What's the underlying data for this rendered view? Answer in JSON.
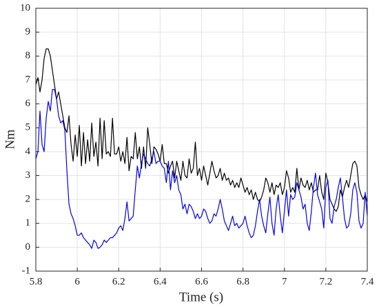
{
  "chart_data": {
    "type": "line",
    "xlabel": "Time (s)",
    "ylabel": "Nm",
    "x": [
      5.8,
      5.81,
      5.82,
      5.83,
      5.84,
      5.85,
      5.86,
      5.87,
      5.88,
      5.89,
      5.9,
      5.91,
      5.92,
      5.93,
      5.94,
      5.95,
      5.96,
      5.97,
      5.98,
      5.99,
      6.0,
      6.01,
      6.02,
      6.03,
      6.04,
      6.05,
      6.06,
      6.07,
      6.08,
      6.09,
      6.1,
      6.11,
      6.12,
      6.13,
      6.14,
      6.15,
      6.16,
      6.17,
      6.18,
      6.19,
      6.2,
      6.21,
      6.22,
      6.23,
      6.24,
      6.25,
      6.26,
      6.27,
      6.28,
      6.29,
      6.3,
      6.31,
      6.32,
      6.33,
      6.34,
      6.35,
      6.36,
      6.37,
      6.38,
      6.39,
      6.4,
      6.41,
      6.42,
      6.43,
      6.44,
      6.45,
      6.46,
      6.47,
      6.48,
      6.49,
      6.5,
      6.51,
      6.52,
      6.53,
      6.54,
      6.55,
      6.56,
      6.57,
      6.58,
      6.59,
      6.6,
      6.61,
      6.62,
      6.63,
      6.64,
      6.65,
      6.66,
      6.67,
      6.68,
      6.69,
      6.7,
      6.71,
      6.72,
      6.73,
      6.74,
      6.75,
      6.76,
      6.77,
      6.78,
      6.79,
      6.8,
      6.81,
      6.82,
      6.83,
      6.84,
      6.85,
      6.86,
      6.87,
      6.88,
      6.89,
      6.9,
      6.91,
      6.92,
      6.93,
      6.94,
      6.95,
      6.96,
      6.97,
      6.98,
      6.99,
      7.0,
      7.01,
      7.02,
      7.03,
      7.04,
      7.05,
      7.06,
      7.07,
      7.08,
      7.09,
      7.1,
      7.11,
      7.12,
      7.13,
      7.14,
      7.15,
      7.16,
      7.17,
      7.18,
      7.19,
      7.2,
      7.21,
      7.22,
      7.23,
      7.24,
      7.25,
      7.26,
      7.27,
      7.28,
      7.29,
      7.3,
      7.31,
      7.32,
      7.33,
      7.34,
      7.35,
      7.36,
      7.37,
      7.38,
      7.39,
      7.4
    ],
    "series": [
      {
        "color": "#000000",
        "values": [
          6.8,
          7.1,
          6.5,
          7.0,
          7.9,
          8.3,
          8.3,
          8.0,
          7.4,
          6.8,
          6.2,
          6.5,
          6.0,
          5.5,
          5.0,
          4.8,
          5.5,
          4.3,
          3.6,
          4.7,
          3.8,
          5.1,
          3.4,
          4.8,
          3.5,
          4.5,
          3.6,
          5.2,
          3.8,
          4.4,
          3.4,
          5.4,
          3.7,
          5.3,
          3.9,
          4.0,
          3.8,
          5.4,
          3.9,
          3.9,
          4.2,
          3.6,
          4.0,
          3.5,
          4.6,
          3.2,
          3.8,
          3.7,
          4.8,
          3.7,
          4.2,
          3.3,
          4.2,
          3.3,
          5.0,
          4.3,
          3.5,
          4.2,
          4.1,
          3.9,
          3.6,
          4.3,
          3.5,
          3.5,
          3.1,
          3.4,
          3.6,
          2.9,
          3.6,
          3.2,
          2.8,
          3.6,
          3.0,
          2.9,
          3.7,
          3.1,
          3.3,
          4.4,
          3.0,
          3.3,
          2.8,
          3.4,
          3.0,
          2.6,
          3.1,
          3.6,
          3.2,
          2.9,
          3.0,
          3.3,
          2.8,
          3.1,
          2.8,
          2.9,
          2.6,
          2.8,
          2.5,
          2.7,
          2.5,
          2.9,
          2.6,
          2.3,
          2.5,
          2.2,
          2.4,
          2.0,
          2.3,
          2.0,
          1.9,
          2.1,
          2.4,
          2.9,
          2.7,
          2.3,
          2.7,
          2.2,
          2.6,
          2.5,
          2.7,
          2.2,
          2.5,
          3.2,
          2.9,
          2.3,
          2.5,
          2.3,
          3.3,
          2.4,
          2.9,
          2.6,
          2.5,
          2.8,
          2.4,
          2.7,
          2.3,
          2.4,
          2.4,
          3.0,
          2.3,
          2.0,
          3.1,
          2.7,
          2.0,
          1.8,
          1.6,
          1.5,
          1.7,
          2.4,
          2.1,
          2.5,
          2.8,
          2.5,
          3.0,
          3.5,
          3.6,
          3.4,
          2.5,
          2.2,
          2.0,
          2.2,
          1.9
        ]
      },
      {
        "color": "#0000ee",
        "values": [
          3.7,
          4.0,
          5.7,
          4.3,
          4.0,
          5.4,
          6.1,
          5.7,
          6.6,
          6.6,
          6.2,
          5.5,
          5.2,
          5.3,
          4.9,
          3.2,
          1.8,
          1.4,
          1.2,
          0.9,
          0.5,
          0.5,
          0.6,
          0.4,
          0.3,
          0.2,
          0.1,
          -0.05,
          0.3,
          0.2,
          -0.05,
          0.0,
          0.1,
          0.3,
          0.2,
          0.3,
          0.4,
          0.4,
          0.5,
          0.6,
          0.8,
          0.9,
          0.7,
          1.2,
          1.9,
          1.1,
          1.2,
          1.3,
          2.4,
          3.4,
          2.9,
          3.5,
          3.9,
          3.7,
          3.5,
          3.4,
          3.7,
          4.0,
          3.5,
          3.6,
          3.6,
          3.4,
          3.3,
          2.7,
          3.6,
          2.4,
          3.2,
          2.7,
          3.0,
          2.4,
          2.2,
          1.6,
          1.8,
          1.4,
          1.8,
          1.7,
          1.5,
          1.2,
          1.4,
          1.2,
          1.3,
          1.6,
          1.5,
          1.2,
          1.0,
          1.1,
          1.4,
          1.3,
          1.6,
          2.0,
          1.6,
          1.1,
          0.9,
          0.7,
          1.0,
          1.3,
          0.9,
          1.0,
          0.8,
          0.9,
          1.0,
          1.3,
          0.9,
          0.6,
          0.4,
          0.5,
          0.9,
          1.5,
          2.0,
          1.3,
          0.9,
          0.6,
          1.4,
          2.1,
          1.0,
          0.5,
          1.6,
          2.2,
          1.3,
          0.6,
          1.5,
          2.4,
          1.3,
          2.2,
          2.0,
          2.1,
          2.7,
          2.4,
          2.1,
          1.6,
          1.8,
          1.0,
          0.7,
          1.5,
          2.5,
          3.1,
          2.2,
          1.9,
          1.6,
          0.8,
          2.5,
          2.8,
          1.2,
          1.0,
          1.7,
          2.0,
          2.5,
          2.9,
          2.1,
          1.2,
          0.8,
          0.9,
          1.4,
          2.4,
          2.7,
          2.3,
          1.1,
          0.8,
          1.0,
          2.3,
          1.3
        ]
      }
    ],
    "xlim": [
      5.8,
      7.4
    ],
    "xticks": [
      5.8,
      6,
      6.2,
      6.4,
      6.6,
      6.8,
      7,
      7.2,
      7.4
    ],
    "ylim": [
      -1,
      10
    ],
    "yticks": [
      -1,
      0,
      1,
      2,
      3,
      4,
      5,
      6,
      7,
      8,
      9,
      10
    ],
    "grid": true
  }
}
